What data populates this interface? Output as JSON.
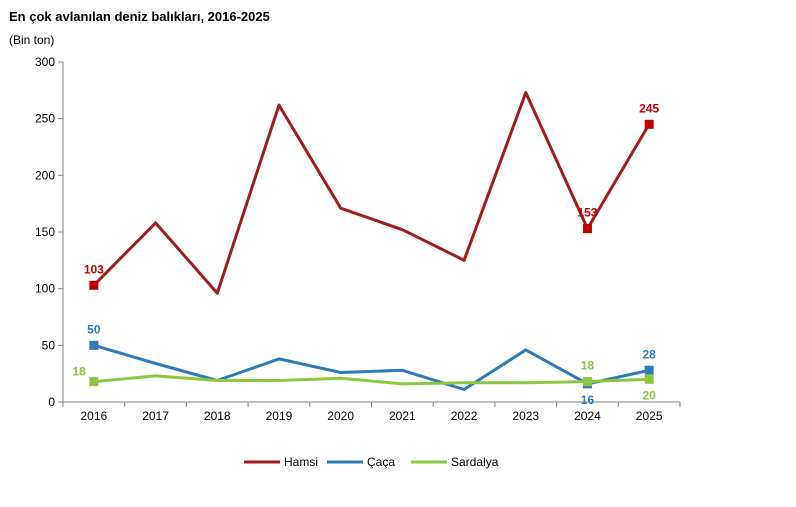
{
  "title": "En çok avlanılan deniz balıkları, 2016-2025",
  "unit_label": "(Bin ton)",
  "chart_data": {
    "type": "line",
    "x": [
      "2016",
      "2017",
      "2018",
      "2019",
      "2020",
      "2021",
      "2022",
      "2023",
      "2024",
      "2025"
    ],
    "ylim": [
      0,
      300
    ],
    "yticks": [
      0,
      50,
      100,
      150,
      200,
      250,
      300
    ],
    "grid": false,
    "legend_position": "bottom",
    "series": [
      {
        "name": "Hamsi",
        "color": "#A11C1C",
        "marker_color": "#C00000",
        "values": [
          103,
          158,
          96,
          262,
          171,
          152,
          125,
          273,
          153,
          245
        ],
        "labels": [
          {
            "i": 0,
            "text": "103",
            "pos": "above"
          },
          {
            "i": 8,
            "text": "153",
            "pos": "above"
          },
          {
            "i": 9,
            "text": "245",
            "pos": "above"
          }
        ]
      },
      {
        "name": "Çaça",
        "color": "#2E7BB5",
        "marker_color": "#2E7BB5",
        "values": [
          50,
          34,
          19,
          38,
          26,
          28,
          11,
          46,
          16,
          28
        ],
        "labels": [
          {
            "i": 0,
            "text": "50",
            "pos": "above"
          },
          {
            "i": 8,
            "text": "16",
            "pos": "below"
          },
          {
            "i": 9,
            "text": "28",
            "pos": "above"
          }
        ]
      },
      {
        "name": "Sardalya",
        "color": "#8DC63F",
        "marker_color": "#8DC63F",
        "values": [
          18,
          23,
          19,
          19,
          21,
          16,
          17,
          17,
          18,
          20
        ],
        "labels": [
          {
            "i": 0,
            "text": "18",
            "pos": "left"
          },
          {
            "i": 8,
            "text": "18",
            "pos": "above"
          },
          {
            "i": 9,
            "text": "20",
            "pos": "below"
          }
        ]
      }
    ],
    "markers_at": [
      0,
      8,
      9
    ]
  }
}
